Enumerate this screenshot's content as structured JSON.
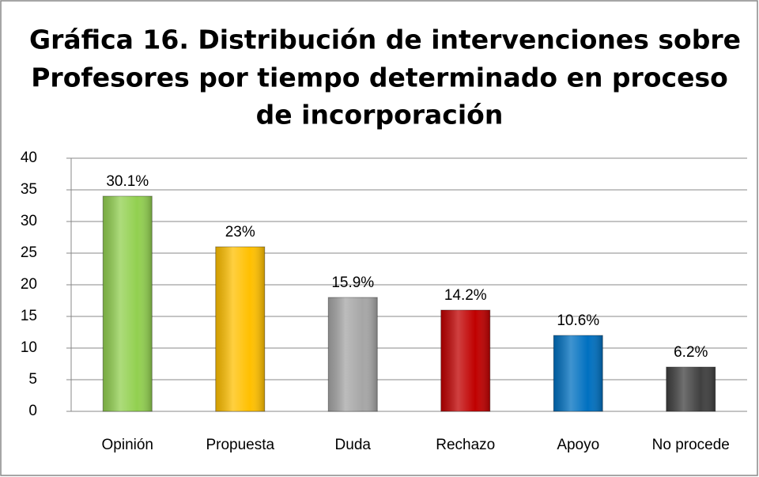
{
  "chart_data": {
    "type": "bar",
    "title": [
      "Gráfica 16. Distribución de intervenciones sobre",
      "Profesores por tiempo determinado en proceso",
      "de incorporación"
    ],
    "categories": [
      "Opinión",
      "Propuesta",
      "Duda",
      "Rechazo",
      "Apoyo",
      "No procede"
    ],
    "values": [
      34,
      26,
      18,
      16,
      12,
      7
    ],
    "value_labels": [
      "30.1%",
      "23%",
      "15.9%",
      "14.2%",
      "10.6%",
      "6.2%"
    ],
    "colors": [
      "#92d050",
      "#ffc000",
      "#a6a6a6",
      "#c00000",
      "#0070c0",
      "#404040"
    ],
    "ylim": [
      0,
      40
    ],
    "yticks": [
      0,
      5,
      10,
      15,
      20,
      25,
      30,
      35,
      40
    ],
    "grid": true
  }
}
